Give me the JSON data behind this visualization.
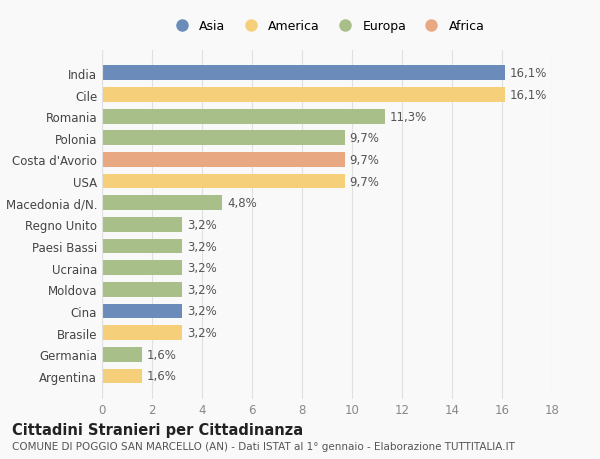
{
  "countries": [
    "India",
    "Cile",
    "Romania",
    "Polonia",
    "Costa d'Avorio",
    "USA",
    "Macedonia d/N.",
    "Regno Unito",
    "Paesi Bassi",
    "Ucraina",
    "Moldova",
    "Cina",
    "Brasile",
    "Germania",
    "Argentina"
  ],
  "values": [
    16.1,
    16.1,
    11.3,
    9.7,
    9.7,
    9.7,
    4.8,
    3.2,
    3.2,
    3.2,
    3.2,
    3.2,
    3.2,
    1.6,
    1.6
  ],
  "labels": [
    "16,1%",
    "16,1%",
    "11,3%",
    "9,7%",
    "9,7%",
    "9,7%",
    "4,8%",
    "3,2%",
    "3,2%",
    "3,2%",
    "3,2%",
    "3,2%",
    "3,2%",
    "1,6%",
    "1,6%"
  ],
  "colors": [
    "#6b8cba",
    "#f5cf7a",
    "#a8bf8a",
    "#a8bf8a",
    "#e8a882",
    "#f5cf7a",
    "#a8bf8a",
    "#a8bf8a",
    "#a8bf8a",
    "#a8bf8a",
    "#a8bf8a",
    "#6b8cba",
    "#f5cf7a",
    "#a8bf8a",
    "#f5cf7a"
  ],
  "legend_labels": [
    "Asia",
    "America",
    "Europa",
    "Africa"
  ],
  "legend_colors": [
    "#6b8cba",
    "#f5cf7a",
    "#a8bf8a",
    "#e8a882"
  ],
  "title": "Cittadini Stranieri per Cittadinanza",
  "subtitle": "COMUNE DI POGGIO SAN MARCELLO (AN) - Dati ISTAT al 1° gennaio - Elaborazione TUTTITALIA.IT",
  "xlim": [
    0,
    18
  ],
  "xticks": [
    0,
    2,
    4,
    6,
    8,
    10,
    12,
    14,
    16,
    18
  ],
  "background_color": "#f9f9f9",
  "grid_color": "#e0e0e0",
  "bar_height": 0.68,
  "label_fontsize": 8.5,
  "tick_fontsize": 8.5,
  "title_fontsize": 10.5,
  "subtitle_fontsize": 7.5
}
